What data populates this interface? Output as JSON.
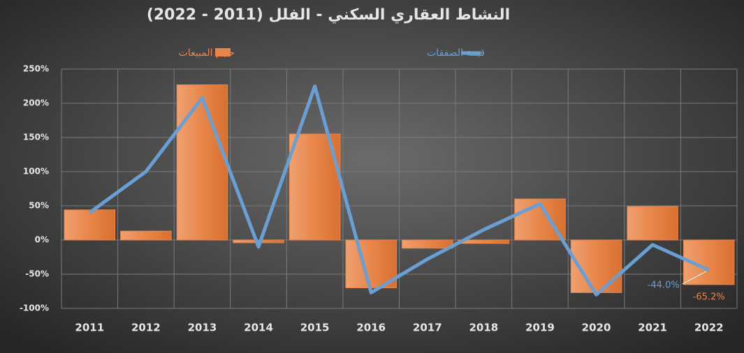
{
  "chart_data": {
    "type": "bar-line",
    "title": "النشاط العقاري السكني - الفلل (2011 - 2022)",
    "categories": [
      "2011",
      "2012",
      "2013",
      "2014",
      "2015",
      "2016",
      "2017",
      "2018",
      "2019",
      "2020",
      "2021",
      "2022"
    ],
    "series": [
      {
        "name": "حجم المبيعات",
        "type": "bar",
        "color": "#e8864a",
        "values": [
          44,
          13,
          227,
          -4,
          155,
          -70,
          -12,
          -5,
          60,
          -77,
          49,
          -65.2
        ],
        "value_labels": [
          null,
          null,
          null,
          null,
          null,
          null,
          null,
          null,
          null,
          null,
          null,
          "-65.2%"
        ]
      },
      {
        "name": "قيمة الصفقات",
        "type": "line",
        "color": "#6a9fd4",
        "values": [
          40,
          100,
          208,
          -10,
          225,
          -77,
          -28,
          15,
          53,
          -80,
          -7,
          -44.0
        ],
        "value_labels": [
          null,
          null,
          null,
          null,
          null,
          null,
          null,
          null,
          null,
          null,
          null,
          "-44.0%"
        ]
      }
    ],
    "ylim": [
      -100,
      250
    ],
    "yticks": [
      {
        "value": -100,
        "label": "-100%"
      },
      {
        "value": -50,
        "label": "-50%"
      },
      {
        "value": 0,
        "label": "0%"
      },
      {
        "value": 50,
        "label": "50%"
      },
      {
        "value": 100,
        "label": "100%"
      },
      {
        "value": 150,
        "label": "150%"
      },
      {
        "value": 200,
        "label": "200%"
      },
      {
        "value": 250,
        "label": "250%"
      }
    ],
    "grid": true,
    "legend": "top"
  }
}
